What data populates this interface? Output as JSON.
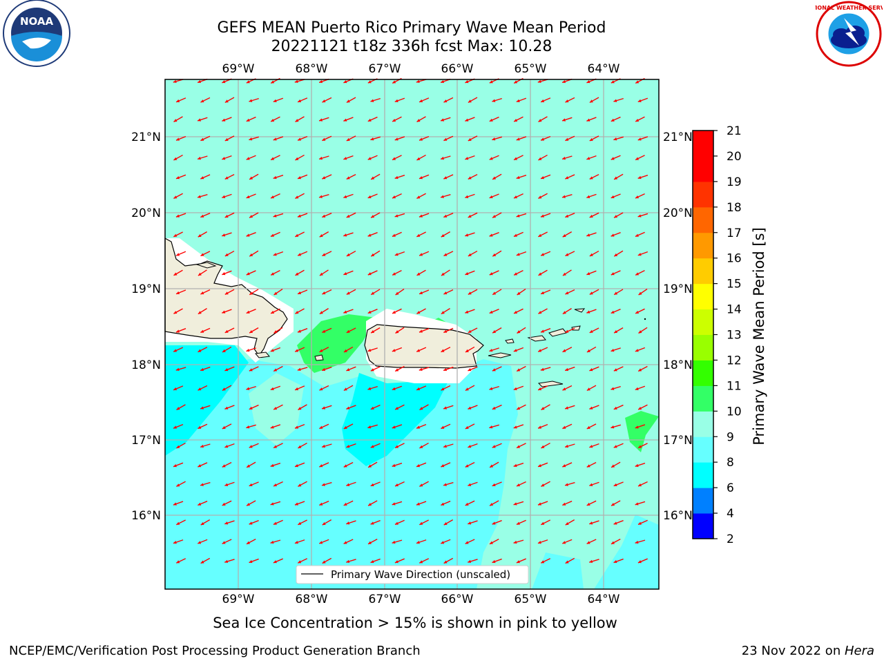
{
  "title_line1": "GEFS MEAN Puerto Rico Primary Wave Mean Period",
  "title_line2": "20221121 t18z 336h fcst   Max: 10.28",
  "lon_labels": [
    "69°W",
    "68°W",
    "67°W",
    "66°W",
    "65°W",
    "64°W"
  ],
  "lat_labels": [
    "21°N",
    "20°N",
    "19°N",
    "18°N",
    "17°N",
    "16°N"
  ],
  "legend_label": "Primary Wave Direction (unscaled)",
  "colorbar": {
    "label": "Primary Wave Mean Period [s]",
    "ticks": [
      "2",
      "4",
      "6",
      "8",
      "9",
      "10",
      "11",
      "12",
      "13",
      "14",
      "15",
      "16",
      "17",
      "18",
      "19",
      "20",
      "21"
    ],
    "colors": [
      "#0000ff",
      "#0080ff",
      "#00ffff",
      "#66ffff",
      "#99ffe6",
      "#33ff66",
      "#33ff00",
      "#99ff00",
      "#ccff00",
      "#ffff00",
      "#ffcc00",
      "#ff9900",
      "#ff6600",
      "#ff3300",
      "#ff0000",
      "#ff0000"
    ]
  },
  "map_colors": {
    "land": "#f0eedc",
    "period_8_9": "#66ffff",
    "period_9_10": "#99ffe6",
    "period_6_8": "#00ffff",
    "period_10_11": "#33ff66",
    "arrow": "#ff0000",
    "grid": "#b0b0b0"
  },
  "sea_ice_note": "Sea Ice Concentration > 15% is shown in pink to yellow",
  "footer_left": "NCEP/EMC/Verification Post Processing Product Generation Branch",
  "footer_right_prefix": "23 Nov 2022 on ",
  "footer_right_host": "Hera",
  "logo_noaa_text": "NOAA",
  "logo_nws_text": "NATIONAL WEATHER SERVICE"
}
